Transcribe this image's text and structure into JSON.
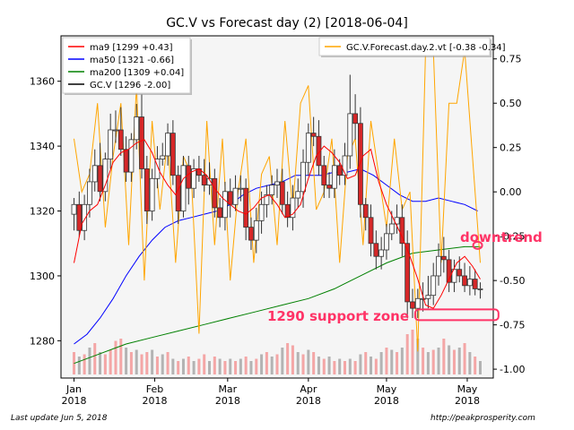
{
  "header": {
    "title": "GC.V vs Forecast day (2)  [2018-06-04]"
  },
  "footer": {
    "left": "Last update Jun  5, 2018",
    "right": "http://peakprosperity.com"
  },
  "chart_data": {
    "type": "line",
    "title": "GC.V vs Forecast day (2)  [2018-06-04]",
    "y_left_ticks": [
      "1280",
      "1300",
      "1320",
      "1340",
      "1360"
    ],
    "y_right_ticks": [
      "0.75",
      "0.50",
      "0.25",
      "0.00",
      "-0.25",
      "-0.50",
      "-0.75",
      "-1.00"
    ],
    "x_ticks": [
      {
        "label": "Jan\n2018",
        "x": 0
      },
      {
        "label": "Feb\n2018",
        "x": 31
      },
      {
        "label": "Mar\n2018",
        "x": 59
      },
      {
        "label": "Apr\n2018",
        "x": 90
      },
      {
        "label": "May\n2018",
        "x": 120
      },
      {
        "label": "May\n2018",
        "x": 151
      }
    ],
    "ylim_left": [
      1268.5,
      1374
    ],
    "ylim_right": [
      -1.05,
      0.88
    ],
    "xlim": [
      -5,
      161
    ],
    "grid": false,
    "legend_left": {
      "placement": "top-left",
      "entries": [
        {
          "label": "ma9 [1299 +0.43]",
          "color": "#ff0000"
        },
        {
          "label": "ma50 [1321 -0.66]",
          "color": "#0000ff"
        },
        {
          "label": "ma200 [1309 +0.04]",
          "color": "#008000"
        },
        {
          "label": "GC.V [1296 -2.00]",
          "color": "#000000"
        }
      ]
    },
    "legend_right": {
      "placement": "top-right",
      "entries": [
        {
          "label": "GC.V.Forecast.day.2.vt [-0.38 -0.34]",
          "color": "#ffa500"
        }
      ]
    },
    "annotations": [
      {
        "text": "downtrend",
        "color": "#ff3366"
      },
      {
        "text": "1290 support zone",
        "color": "#ff3366"
      }
    ],
    "annotation_shapes": {
      "downtrend_circle": {
        "x": 155,
        "y": 1305
      },
      "support_box": {
        "x0": 131,
        "x1": 163,
        "y": 1288
      }
    },
    "series": [
      {
        "name": "ma9",
        "color": "#ff0000",
        "x": [
          0,
          3,
          6,
          9,
          12,
          15,
          18,
          21,
          24,
          27,
          30,
          33,
          36,
          39,
          42,
          45,
          48,
          51,
          54,
          57,
          60,
          63,
          66,
          69,
          72,
          75,
          78,
          81,
          84,
          87,
          90,
          93,
          96,
          99,
          102,
          105,
          108,
          111,
          114,
          117,
          120,
          123,
          126,
          129,
          132,
          135,
          138,
          141,
          144,
          147,
          150,
          153,
          156
        ],
        "y": [
          1304,
          1316,
          1320,
          1322,
          1328,
          1335,
          1338,
          1339,
          1341,
          1342,
          1338,
          1332,
          1328,
          1325,
          1330,
          1332,
          1333,
          1331,
          1327,
          1324,
          1322,
          1320,
          1319,
          1321,
          1324,
          1325,
          1322,
          1318,
          1319,
          1322,
          1330,
          1337,
          1340,
          1338,
          1335,
          1330,
          1331,
          1337,
          1339,
          1329,
          1322,
          1317,
          1312,
          1306,
          1299,
          1291,
          1290,
          1294,
          1299,
          1304,
          1306,
          1303,
          1299
        ]
      },
      {
        "name": "ma50",
        "color": "#0000ff",
        "x": [
          0,
          5,
          10,
          15,
          20,
          25,
          30,
          35,
          40,
          45,
          50,
          55,
          60,
          65,
          70,
          75,
          80,
          85,
          90,
          95,
          100,
          105,
          110,
          115,
          120,
          125,
          130,
          135,
          140,
          145,
          150,
          155
        ],
        "y": [
          1279,
          1282,
          1287,
          1293,
          1300,
          1306,
          1311,
          1315,
          1317,
          1318,
          1319,
          1320,
          1322,
          1325,
          1327,
          1328,
          1329,
          1331,
          1331,
          1331,
          1332,
          1332,
          1333,
          1331,
          1328,
          1325,
          1323,
          1323,
          1324,
          1323,
          1322,
          1320
        ]
      },
      {
        "name": "ma200",
        "color": "#008000",
        "x": [
          0,
          10,
          20,
          30,
          40,
          50,
          60,
          70,
          80,
          90,
          100,
          110,
          120,
          130,
          140,
          150,
          156
        ],
        "y": [
          1273,
          1276,
          1279,
          1281,
          1283,
          1285,
          1287,
          1289,
          1291,
          1293,
          1296,
          1300,
          1304,
          1307,
          1308,
          1309,
          1309
        ]
      },
      {
        "name": "GC.V.Forecast.day.2.vt",
        "color": "#ffa500",
        "axis": "right",
        "x": [
          0,
          3,
          6,
          9,
          12,
          15,
          18,
          21,
          24,
          27,
          30,
          33,
          36,
          39,
          42,
          45,
          48,
          51,
          54,
          57,
          60,
          63,
          66,
          69,
          72,
          75,
          78,
          81,
          84,
          87,
          90,
          93,
          96,
          99,
          102,
          105,
          108,
          111,
          114,
          117,
          120,
          123,
          126,
          129,
          132,
          135,
          138,
          141,
          144,
          147,
          150,
          153,
          156
        ],
        "y": [
          0.3,
          0.0,
          0.1,
          0.5,
          -0.2,
          0.2,
          0.5,
          -0.3,
          0.6,
          -0.5,
          0.4,
          -0.1,
          0.3,
          -0.4,
          0.2,
          0.1,
          -0.8,
          0.4,
          -0.3,
          0.3,
          -0.5,
          0.0,
          0.3,
          -0.4,
          0.1,
          0.2,
          -0.3,
          0.4,
          -0.1,
          0.5,
          0.6,
          -0.1,
          0.0,
          0.3,
          -0.4,
          0.2,
          0.3,
          -0.3,
          0.4,
          0.1,
          -0.2,
          0.3,
          -0.1,
          0.0,
          -0.9,
          0.8,
          0.8,
          -0.4,
          0.5,
          0.5,
          0.8,
          0.2,
          -0.4
        ]
      },
      {
        "name": "GC.V",
        "kind": "candlestick",
        "color": "#000000",
        "x": [
          0,
          2,
          4,
          6,
          8,
          10,
          12,
          14,
          16,
          18,
          20,
          22,
          24,
          26,
          28,
          30,
          32,
          34,
          36,
          38,
          40,
          42,
          44,
          46,
          48,
          50,
          52,
          54,
          56,
          58,
          60,
          62,
          64,
          66,
          68,
          70,
          72,
          74,
          76,
          78,
          80,
          82,
          84,
          86,
          88,
          90,
          92,
          94,
          96,
          98,
          100,
          102,
          104,
          106,
          108,
          110,
          112,
          114,
          116,
          118,
          120,
          122,
          124,
          126,
          128,
          130,
          132,
          134,
          136,
          138,
          140,
          142,
          144,
          146,
          148,
          150,
          152,
          154,
          156
        ],
        "open": [
          1319,
          1322,
          1314,
          1322,
          1329,
          1334,
          1326,
          1336,
          1345,
          1345,
          1339,
          1332,
          1342,
          1349,
          1333,
          1320,
          1330,
          1336,
          1337,
          1344,
          1331,
          1320,
          1334,
          1327,
          1333,
          1331,
          1328,
          1330,
          1321,
          1318,
          1326,
          1322,
          1327,
          1327,
          1315,
          1311,
          1317,
          1322,
          1325,
          1328,
          1329,
          1322,
          1318,
          1324,
          1326,
          1335,
          1344,
          1343,
          1334,
          1328,
          1327,
          1334,
          1331,
          1337,
          1350,
          1347,
          1322,
          1318,
          1310,
          1306,
          1308,
          1313,
          1316,
          1318,
          1310,
          1292,
          1290,
          1293,
          1293,
          1294,
          1300,
          1306,
          1305,
          1298,
          1302,
          1300,
          1297,
          1299,
          1296
        ],
        "close": [
          1322,
          1314,
          1322,
          1329,
          1334,
          1326,
          1336,
          1345,
          1345,
          1339,
          1332,
          1342,
          1349,
          1333,
          1320,
          1330,
          1336,
          1337,
          1344,
          1331,
          1320,
          1334,
          1327,
          1333,
          1331,
          1328,
          1330,
          1321,
          1318,
          1326,
          1322,
          1327,
          1327,
          1315,
          1311,
          1317,
          1322,
          1325,
          1328,
          1329,
          1322,
          1318,
          1324,
          1326,
          1335,
          1344,
          1343,
          1334,
          1328,
          1327,
          1334,
          1331,
          1337,
          1350,
          1347,
          1322,
          1318,
          1310,
          1306,
          1308,
          1313,
          1316,
          1318,
          1310,
          1292,
          1290,
          1293,
          1293,
          1294,
          1300,
          1306,
          1305,
          1298,
          1302,
          1300,
          1297,
          1299,
          1296,
          1296
        ],
        "high": [
          1324,
          1326,
          1325,
          1333,
          1339,
          1341,
          1338,
          1350,
          1351,
          1352,
          1343,
          1344,
          1353,
          1356,
          1337,
          1333,
          1340,
          1341,
          1347,
          1348,
          1334,
          1337,
          1337,
          1336,
          1337,
          1336,
          1335,
          1333,
          1324,
          1329,
          1330,
          1331,
          1331,
          1330,
          1318,
          1321,
          1326,
          1328,
          1331,
          1333,
          1333,
          1326,
          1328,
          1330,
          1339,
          1347,
          1349,
          1348,
          1337,
          1332,
          1339,
          1336,
          1341,
          1362,
          1356,
          1352,
          1324,
          1322,
          1314,
          1312,
          1316,
          1320,
          1322,
          1322,
          1314,
          1296,
          1296,
          1298,
          1300,
          1304,
          1310,
          1312,
          1308,
          1305,
          1306,
          1304,
          1303,
          1302,
          1298
        ],
        "low": [
          1314,
          1312,
          1311,
          1318,
          1326,
          1323,
          1323,
          1333,
          1341,
          1337,
          1329,
          1329,
          1339,
          1330,
          1316,
          1317,
          1327,
          1334,
          1334,
          1328,
          1316,
          1318,
          1322,
          1324,
          1329,
          1326,
          1325,
          1318,
          1315,
          1314,
          1318,
          1320,
          1323,
          1311,
          1308,
          1307,
          1313,
          1318,
          1322,
          1324,
          1319,
          1315,
          1314,
          1321,
          1321,
          1331,
          1340,
          1331,
          1324,
          1324,
          1324,
          1328,
          1328,
          1333,
          1342,
          1318,
          1314,
          1306,
          1302,
          1302,
          1305,
          1311,
          1313,
          1306,
          1287,
          1287,
          1287,
          1289,
          1290,
          1291,
          1297,
          1301,
          1295,
          1295,
          1298,
          1295,
          1294,
          1294,
          1293
        ]
      },
      {
        "name": "volume",
        "kind": "bar",
        "axis": "volume",
        "x": [
          0,
          2,
          4,
          6,
          8,
          10,
          12,
          14,
          16,
          18,
          20,
          22,
          24,
          26,
          28,
          30,
          32,
          34,
          36,
          38,
          40,
          42,
          44,
          46,
          48,
          50,
          52,
          54,
          56,
          58,
          60,
          62,
          64,
          66,
          68,
          70,
          72,
          74,
          76,
          78,
          80,
          82,
          84,
          86,
          88,
          90,
          92,
          94,
          96,
          98,
          100,
          102,
          104,
          106,
          108,
          110,
          112,
          114,
          116,
          118,
          120,
          122,
          124,
          126,
          128,
          130,
          132,
          134,
          136,
          138,
          140,
          142,
          144,
          146,
          148,
          150,
          152,
          154,
          156
        ],
        "y": [
          0.5,
          0.4,
          0.45,
          0.6,
          0.7,
          0.5,
          0.45,
          0.55,
          0.75,
          0.8,
          0.6,
          0.5,
          0.55,
          0.45,
          0.5,
          0.55,
          0.4,
          0.45,
          0.5,
          0.35,
          0.3,
          0.35,
          0.4,
          0.3,
          0.35,
          0.45,
          0.3,
          0.4,
          0.35,
          0.3,
          0.35,
          0.3,
          0.35,
          0.4,
          0.3,
          0.35,
          0.45,
          0.5,
          0.4,
          0.45,
          0.6,
          0.7,
          0.65,
          0.5,
          0.45,
          0.55,
          0.5,
          0.4,
          0.35,
          0.4,
          0.3,
          0.35,
          0.3,
          0.35,
          0.3,
          0.45,
          0.5,
          0.4,
          0.35,
          0.5,
          0.6,
          0.55,
          0.5,
          0.6,
          0.9,
          1.0,
          0.8,
          0.6,
          0.5,
          0.55,
          0.6,
          0.8,
          0.65,
          0.55,
          0.6,
          0.7,
          0.5,
          0.4,
          0.3
        ],
        "colors": [
          "pink",
          "gray",
          "pink",
          "gray",
          "pink",
          "gray",
          "pink",
          "pink",
          "pink",
          "pink",
          "gray",
          "pink",
          "gray",
          "pink",
          "pink",
          "gray",
          "pink",
          "gray",
          "pink",
          "gray",
          "pink",
          "gray",
          "pink",
          "gray",
          "pink",
          "pink",
          "gray",
          "pink",
          "gray",
          "pink",
          "gray",
          "pink",
          "gray",
          "pink",
          "gray",
          "pink",
          "gray",
          "pink",
          "gray",
          "pink",
          "gray",
          "pink",
          "pink",
          "gray",
          "pink",
          "gray",
          "pink",
          "gray",
          "pink",
          "gray",
          "pink",
          "gray",
          "pink",
          "gray",
          "pink",
          "gray",
          "pink",
          "gray",
          "pink",
          "gray",
          "pink",
          "gray",
          "pink",
          "gray",
          "pink",
          "pink",
          "gray",
          "pink",
          "gray",
          "pink",
          "gray",
          "pink",
          "gray",
          "pink",
          "gray",
          "pink",
          "gray",
          "pink",
          "gray"
        ]
      }
    ]
  }
}
